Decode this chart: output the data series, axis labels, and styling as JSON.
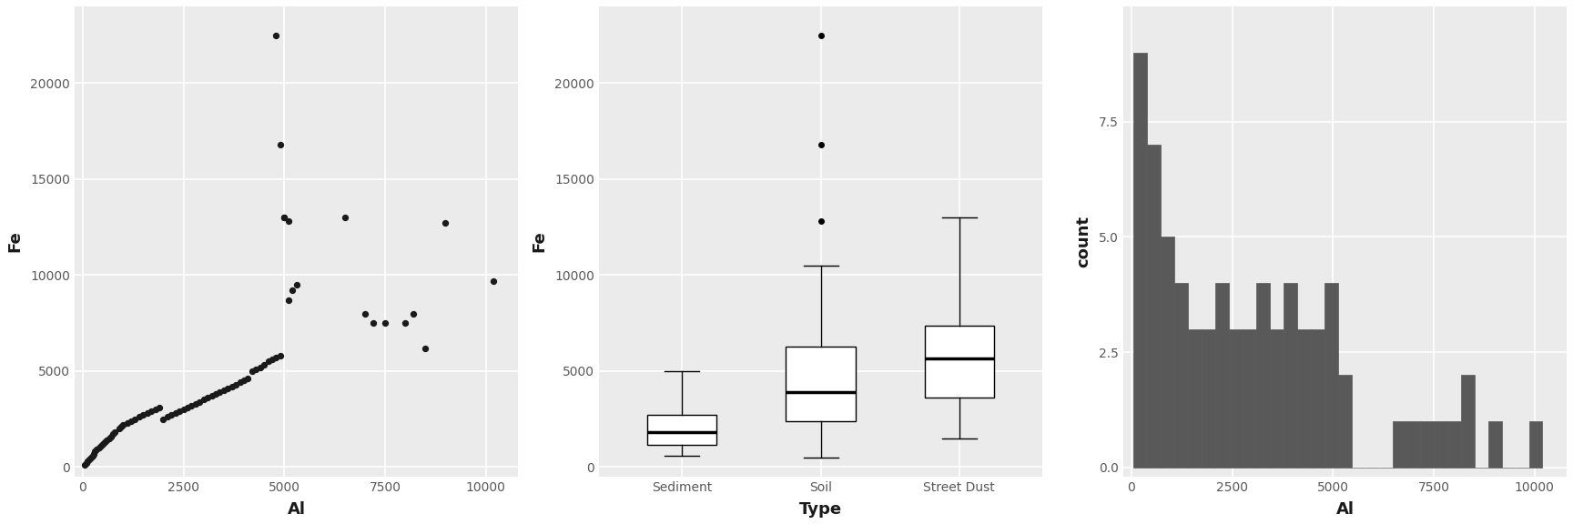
{
  "scatter_Al": [
    50,
    100,
    120,
    150,
    200,
    250,
    280,
    300,
    350,
    400,
    450,
    500,
    550,
    600,
    650,
    700,
    750,
    800,
    900,
    950,
    1000,
    1100,
    1200,
    1300,
    1400,
    1500,
    1600,
    1700,
    1800,
    1900,
    2000,
    2100,
    2200,
    2300,
    2400,
    2500,
    2600,
    2700,
    2800,
    2900,
    3000,
    3100,
    3200,
    3300,
    3400,
    3500,
    3600,
    3700,
    3800,
    3900,
    4000,
    4100,
    4200,
    4300,
    4400,
    4500,
    4600,
    4700,
    4800,
    4900,
    5000,
    5100,
    5200,
    5300,
    6500,
    7000,
    7200,
    7500,
    8000,
    8200,
    8500,
    9000,
    10200
  ],
  "scatter_Fe": [
    100,
    200,
    300,
    400,
    500,
    600,
    700,
    800,
    900,
    1000,
    1100,
    1200,
    1300,
    1400,
    1500,
    1600,
    1700,
    1800,
    2000,
    2100,
    2200,
    2300,
    2400,
    2500,
    2600,
    2700,
    2800,
    2900,
    3000,
    3100,
    2500,
    2600,
    2700,
    2800,
    2900,
    3000,
    3100,
    3200,
    3300,
    3400,
    3500,
    3600,
    3700,
    3800,
    3900,
    4000,
    4100,
    4200,
    4300,
    4400,
    4500,
    4600,
    5000,
    5100,
    5200,
    5300,
    5500,
    5600,
    5700,
    5800,
    13000,
    8700,
    9200,
    9500,
    13000,
    8000,
    7500,
    7500,
    7500,
    8000,
    6200,
    12700,
    9700
  ],
  "scatter_outliers_Al": [
    4800,
    4900,
    5000,
    5100
  ],
  "scatter_outliers_Fe": [
    22500,
    16800,
    13000,
    12800
  ],
  "sediment_data": [
    600,
    700,
    800,
    900,
    1000,
    1100,
    1200,
    1300,
    1400,
    1500,
    1600,
    1800,
    2000,
    2200,
    2400,
    2500,
    2600,
    2800,
    3000,
    3200,
    3400,
    4500,
    5000
  ],
  "soil_data": [
    500,
    700,
    900,
    1100,
    1500,
    2000,
    2500,
    2800,
    3000,
    3200,
    3500,
    3800,
    4000,
    4200,
    4500,
    5000,
    5500,
    6000,
    7000,
    8000,
    10500,
    12800,
    16800,
    22500
  ],
  "streetdust_data": [
    1500,
    2000,
    2500,
    3000,
    3500,
    4000,
    4500,
    5000,
    5500,
    5800,
    6000,
    6500,
    7000,
    7500,
    8000,
    8500,
    9000,
    13000
  ],
  "hist_Al": [
    50,
    100,
    120,
    150,
    200,
    250,
    280,
    300,
    350,
    400,
    450,
    500,
    550,
    600,
    650,
    700,
    750,
    800,
    900,
    950,
    1000,
    1100,
    1200,
    1300,
    1400,
    1500,
    1600,
    1700,
    1800,
    1900,
    2000,
    2100,
    2200,
    2300,
    2400,
    2500,
    2600,
    2700,
    2800,
    2900,
    3000,
    3100,
    3200,
    3300,
    3400,
    3500,
    3600,
    3700,
    3800,
    3900,
    4000,
    4100,
    4200,
    4300,
    4400,
    4500,
    4600,
    4700,
    4800,
    4900,
    5000,
    5100,
    5200,
    5300,
    6500,
    7000,
    7200,
    7500,
    8000,
    8200,
    8500,
    9000,
    10200
  ],
  "bg_color": "#EBEBEB",
  "grid_color": "#FFFFFF",
  "scatter_color": "#1a1a1a",
  "box_color": "#FFFFFF",
  "box_edge_color": "#1a1a1a",
  "hist_color": "#595959",
  "text_color": "#4d4d4d",
  "axis_label_color": "#1a1a1a",
  "tick_label_color": "#595959"
}
